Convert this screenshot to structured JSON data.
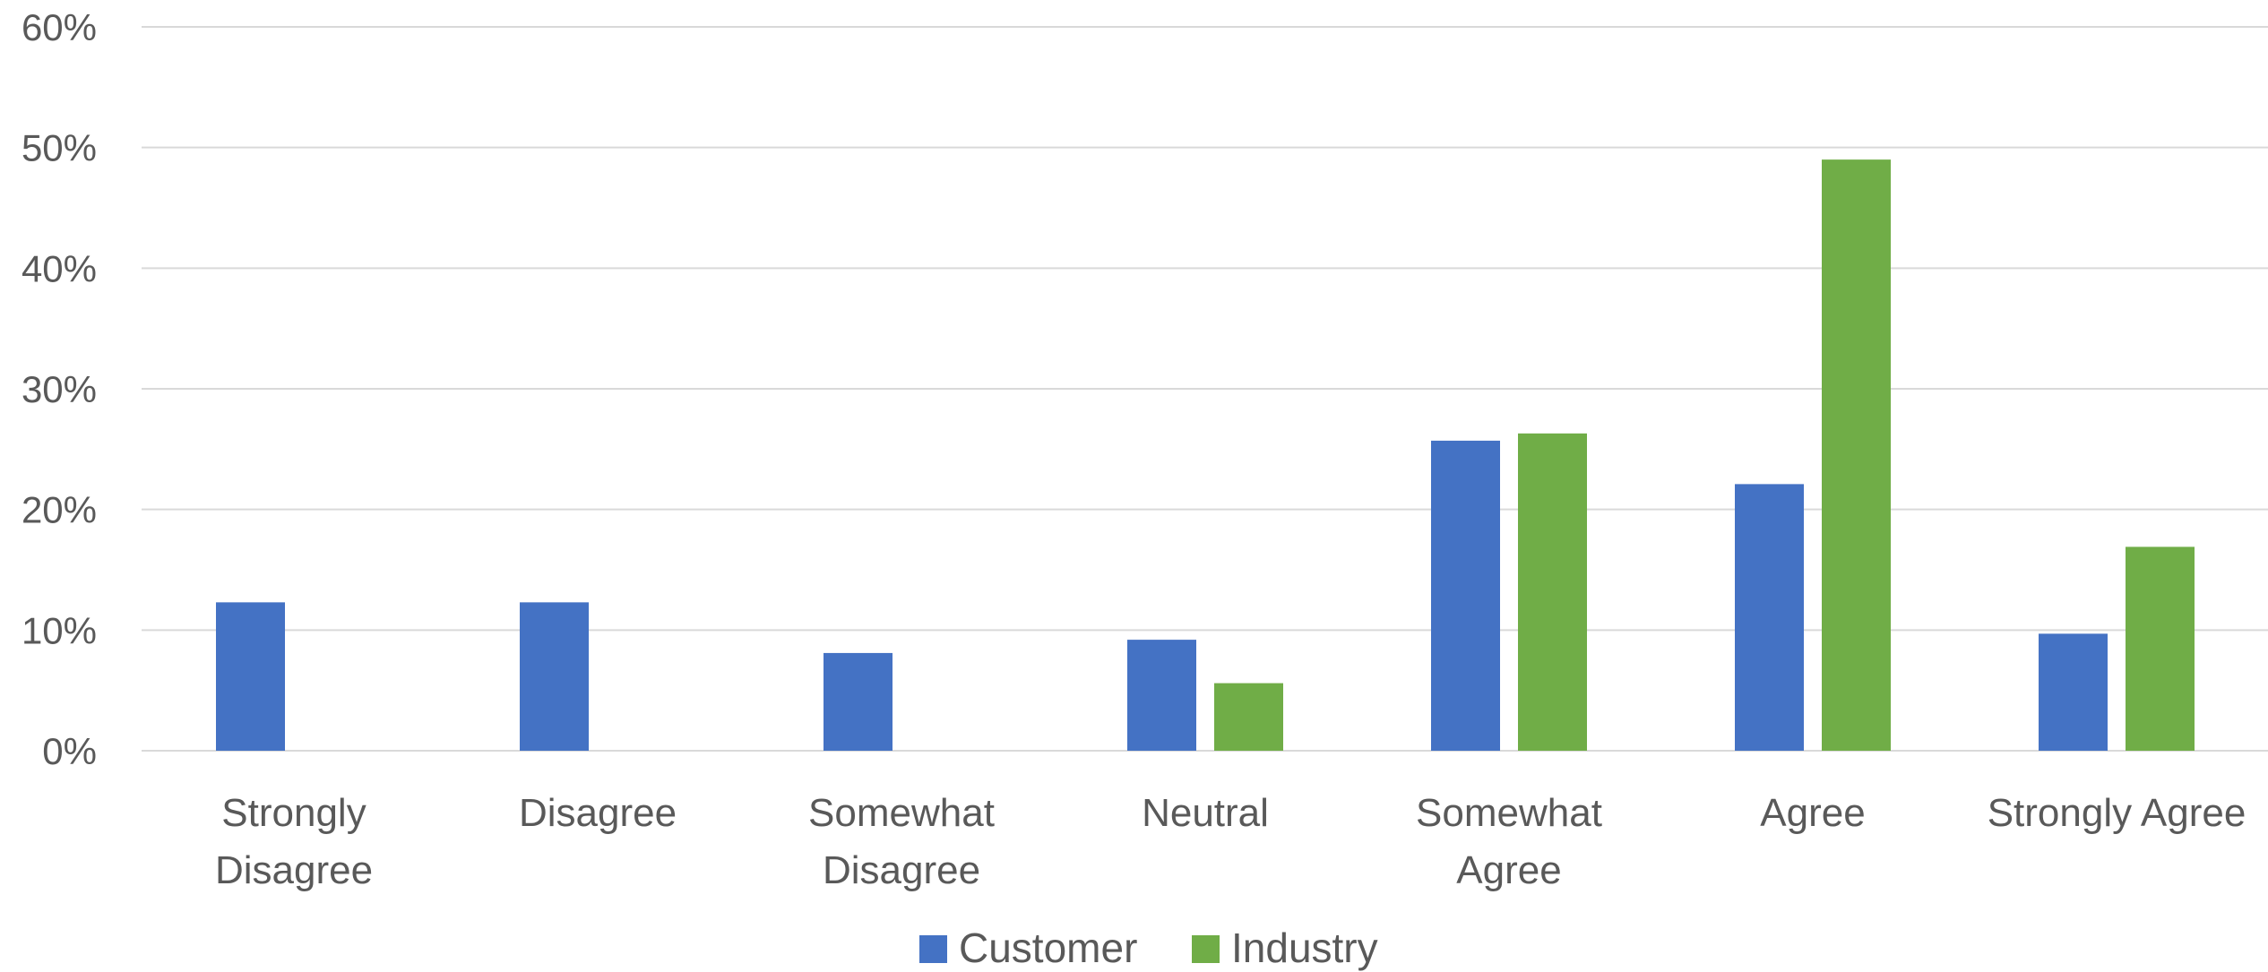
{
  "chart_data": {
    "type": "bar",
    "title": "",
    "xlabel": "",
    "ylabel": "",
    "ylim": [
      0,
      60
    ],
    "y_ticks": [
      0,
      10,
      20,
      30,
      40,
      50,
      60
    ],
    "y_tick_labels": [
      "0%",
      "10%",
      "20%",
      "30%",
      "40%",
      "50%",
      "60%"
    ],
    "grid": true,
    "legend_position": "bottom",
    "categories": [
      "Strongly Disagree",
      "Disagree",
      "Somewhat Disagree",
      "Neutral",
      "Somewhat Agree",
      "Agree",
      "Strongly Agree"
    ],
    "category_label_lines": [
      [
        "Strongly",
        "Disagree"
      ],
      [
        "Disagree"
      ],
      [
        "Somewhat",
        "Disagree"
      ],
      [
        "Neutral"
      ],
      [
        "Somewhat",
        "Agree"
      ],
      [
        "Agree"
      ],
      [
        "Strongly Agree"
      ]
    ],
    "series": [
      {
        "name": "Customer",
        "color": "#4472c4",
        "values": [
          12.3,
          12.3,
          8.1,
          9.2,
          25.7,
          22.1,
          9.7
        ]
      },
      {
        "name": "Industry",
        "color": "#70ad47",
        "values": [
          0,
          0,
          0,
          5.6,
          26.3,
          49.0,
          16.9
        ]
      }
    ]
  }
}
